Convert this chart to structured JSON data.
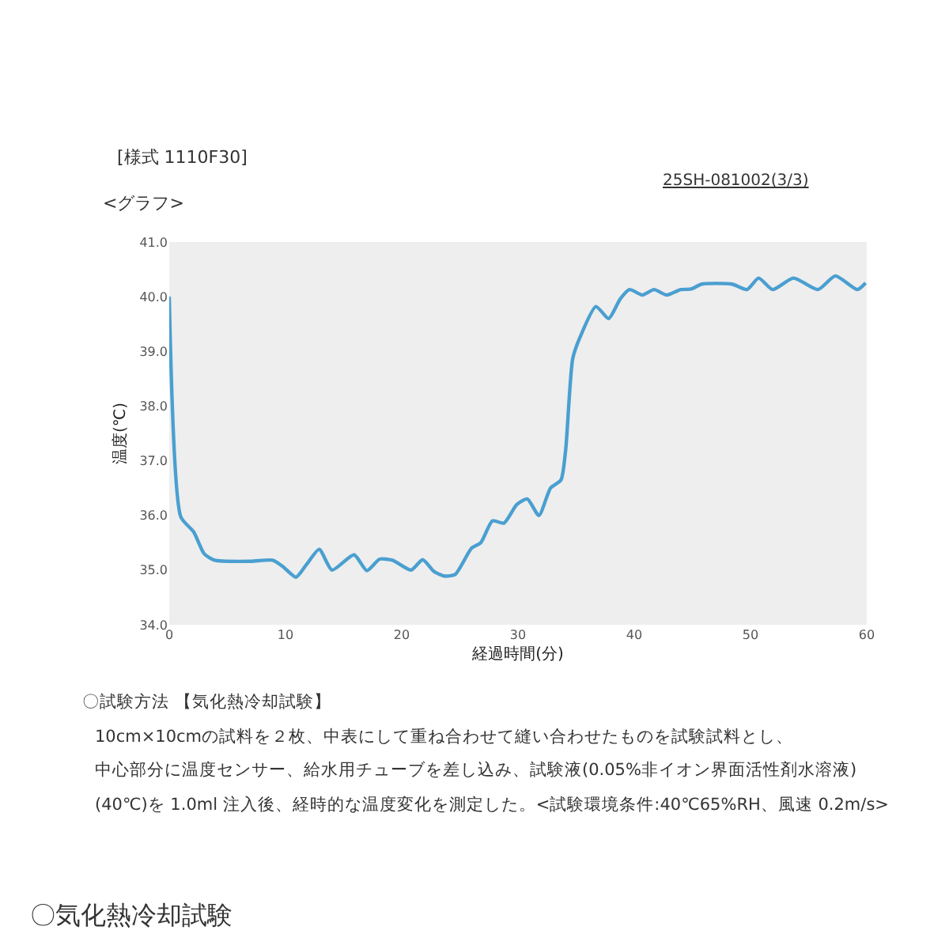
{
  "chart_data": {
    "type": "line",
    "xlabel": "経過時間(分)",
    "ylabel": "温度(℃)",
    "x": [
      0,
      1,
      2.1,
      3,
      3.9,
      7,
      8.9,
      9.8,
      10.9,
      11.8,
      12.9,
      14,
      15.9,
      17,
      18.1,
      19.2,
      20.8,
      21.8,
      22.8,
      23.7,
      24.6,
      26,
      26.8,
      27.8,
      28.8,
      29.9,
      30.8,
      31.8,
      32.8,
      33.7,
      34.1,
      34.7,
      35.3,
      36.7,
      37.8,
      38.8,
      39.6,
      40.7,
      41.7,
      42.8,
      44,
      44.9,
      45.8,
      48.4,
      49.7,
      50.7,
      51.9,
      53.7,
      55.8,
      57.3,
      59.2,
      59.9
    ],
    "series": [
      {
        "color": "#4a9fd0",
        "values": [
          40.0,
          35.97,
          35.7,
          35.3,
          35.18,
          35.16,
          35.18,
          35.06,
          34.87,
          35.1,
          35.38,
          35.0,
          35.28,
          34.99,
          35.2,
          35.18,
          35.0,
          35.19,
          34.97,
          34.89,
          34.92,
          35.4,
          35.5,
          35.9,
          35.86,
          36.2,
          36.3,
          36.0,
          36.5,
          36.65,
          37.2,
          38.86,
          39.24,
          39.82,
          39.6,
          39.96,
          40.13,
          40.03,
          40.13,
          40.03,
          40.13,
          40.14,
          40.23,
          40.23,
          40.13,
          40.34,
          40.13,
          40.34,
          40.13,
          40.38,
          40.13,
          40.25
        ]
      }
    ],
    "xlim": [
      0,
      60
    ],
    "xticks": [
      0,
      10,
      20,
      30,
      40,
      50,
      60
    ],
    "ylim": [
      34,
      41
    ],
    "yticks": [
      {
        "value": 34,
        "label": "34.0"
      },
      {
        "value": 35,
        "label": "35.0"
      },
      {
        "value": 36,
        "label": "36.0"
      },
      {
        "value": 37,
        "label": "37.0"
      },
      {
        "value": 38,
        "label": "38.0"
      },
      {
        "value": 39,
        "label": "39.0"
      },
      {
        "value": 40,
        "label": "40.0"
      },
      {
        "value": 41,
        "label": "41.0"
      }
    ],
    "grid": false,
    "legend": false,
    "marker": "none",
    "line_style": "solid",
    "annotations": [
      "[様式 1110F30]",
      "25SH-081002(3/3)",
      "<グラフ>",
      "〇試験方法 【気化熱冷却試験】",
      "10cm×10cmの試料を２枚、中表にして重ね合わせて縫い合わせたものを試験試料とし、",
      "中心部分に温度センサー、給水用チューブを差し込み、試験液(0.05%非イオン界面活性剤水溶液)",
      "(40℃)を 1.0ml 注入後、経時的な温度変化を測定した。<試験環境条件:40℃65%RH、風速 0.2m/s>",
      "〇気化熱冷却試験"
    ]
  }
}
